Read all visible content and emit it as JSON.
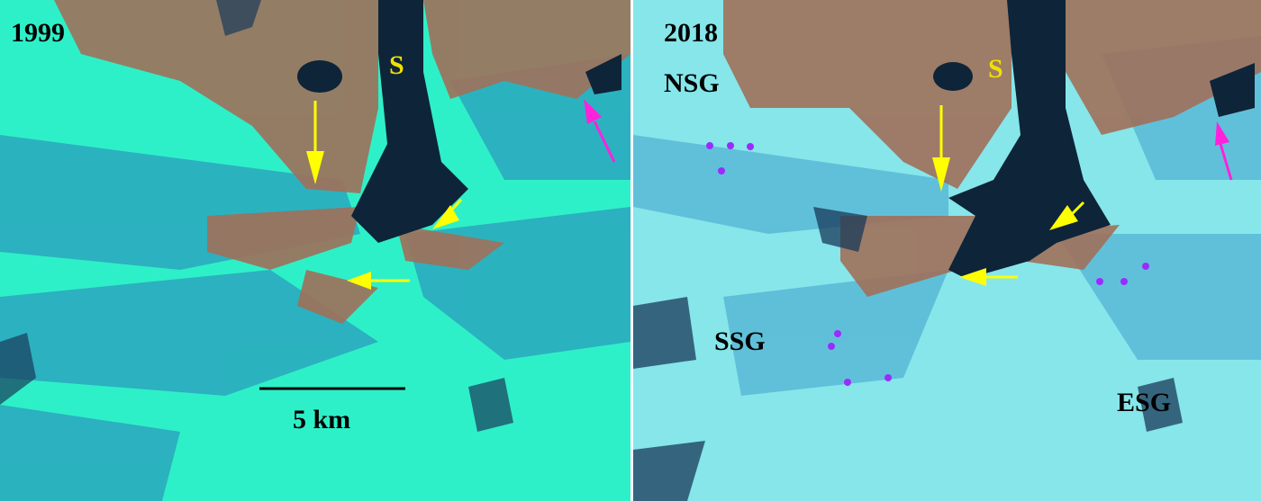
{
  "left_panel": {
    "year": "1999",
    "fjord_label": "S",
    "scale_label": "5 km"
  },
  "right_panel": {
    "year": "2018",
    "fjord_label": "S",
    "glaciers": [
      "NSG",
      "SSG",
      "ESG"
    ]
  },
  "colors": {
    "arrow": "#ffff00",
    "arrow_alt": "#ff22dd",
    "dots": "#9a2cff",
    "ice_1999": "#2ef0c8",
    "ice_2018": "#86e6ea",
    "rock": "#a0705a",
    "water": "#0e2438"
  }
}
